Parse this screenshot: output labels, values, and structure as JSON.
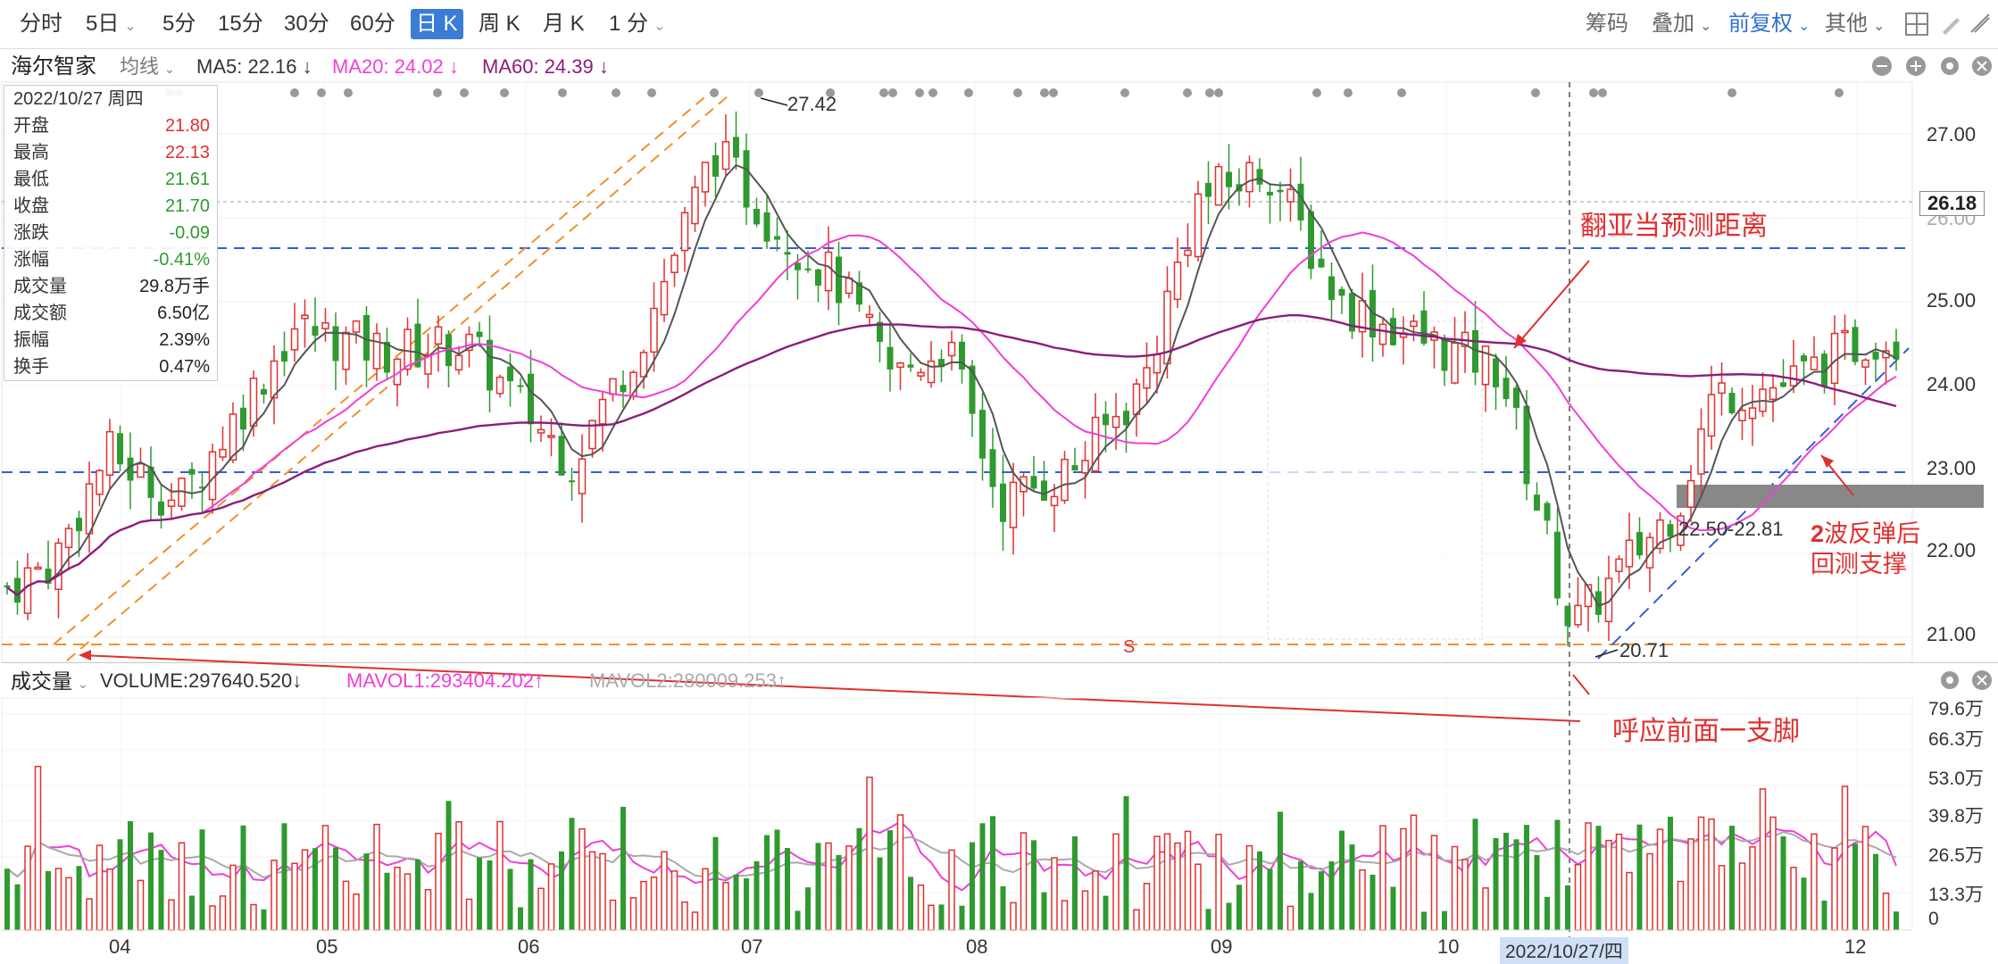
{
  "toolbar": {
    "items": [
      "分时",
      "5日",
      "5分",
      "15分",
      "30分",
      "60分",
      "日 K",
      "周 K",
      "月 K",
      "1 分"
    ],
    "active": "日 K",
    "right": [
      "筹码",
      "叠加",
      "前复权",
      "其他"
    ]
  },
  "stock": {
    "name": "海尔智家",
    "avg_label": "均线",
    "ma5": "MA5: 22.16 ↓",
    "ma20": "MA20: 24.02 ↓",
    "ma60": "MA60: 24.39 ↓"
  },
  "info": {
    "date": "2022/10/27 周四",
    "rows": [
      {
        "k": "开盘",
        "v": "21.80",
        "c": "red"
      },
      {
        "k": "最高",
        "v": "22.13",
        "c": "red"
      },
      {
        "k": "最低",
        "v": "21.61",
        "c": "green"
      },
      {
        "k": "收盘",
        "v": "21.70",
        "c": "green"
      },
      {
        "k": "涨跌",
        "v": "-0.09",
        "c": "green"
      },
      {
        "k": "涨幅",
        "v": "-0.41%",
        "c": "green"
      },
      {
        "k": "成交量",
        "v": "29.8万手",
        "c": "black"
      },
      {
        "k": "成交额",
        "v": "6.50亿",
        "c": "black"
      },
      {
        "k": "振幅",
        "v": "2.39%",
        "c": "black"
      },
      {
        "k": "换手",
        "v": "0.47%",
        "c": "black"
      }
    ]
  },
  "price_axis": [
    "27.00",
    "26.00",
    "25.00",
    "24.00",
    "23.00",
    "22.00",
    "21.00"
  ],
  "price_marker": "26.18",
  "volume": {
    "label": "成交量",
    "volume": "VOLUME:297640.520↓",
    "mavol1": "MAVOL1:293404.202↑",
    "mavol2": "MAVOL2:280009.253↑",
    "axis": [
      "79.6万",
      "66.3万",
      "53.0万",
      "39.8万",
      "26.5万",
      "13.3万",
      "0"
    ]
  },
  "months": [
    "04",
    "05",
    "06",
    "07",
    "08",
    "09",
    "10",
    "12"
  ],
  "cursor_date": "2022/10/27/四",
  "annotations": {
    "high": "27.42",
    "low": "20.71",
    "s_mark": "S",
    "fib": "翻亚当预测距离",
    "support_range": "22.50-22.81",
    "wave_title": "2波反弹后",
    "wave_title_num": "2",
    "wave_title_rest": "波反弹后",
    "wave_sub": "回测支撑",
    "echo": "呼应前面一支脚"
  },
  "colors": {
    "up": "#e0302f",
    "down": "#2f9a2f",
    "ma5": "#555555",
    "ma20": "#ef3fd8",
    "ma60": "#8b1d7a",
    "accent": "#3b7cd6"
  }
}
